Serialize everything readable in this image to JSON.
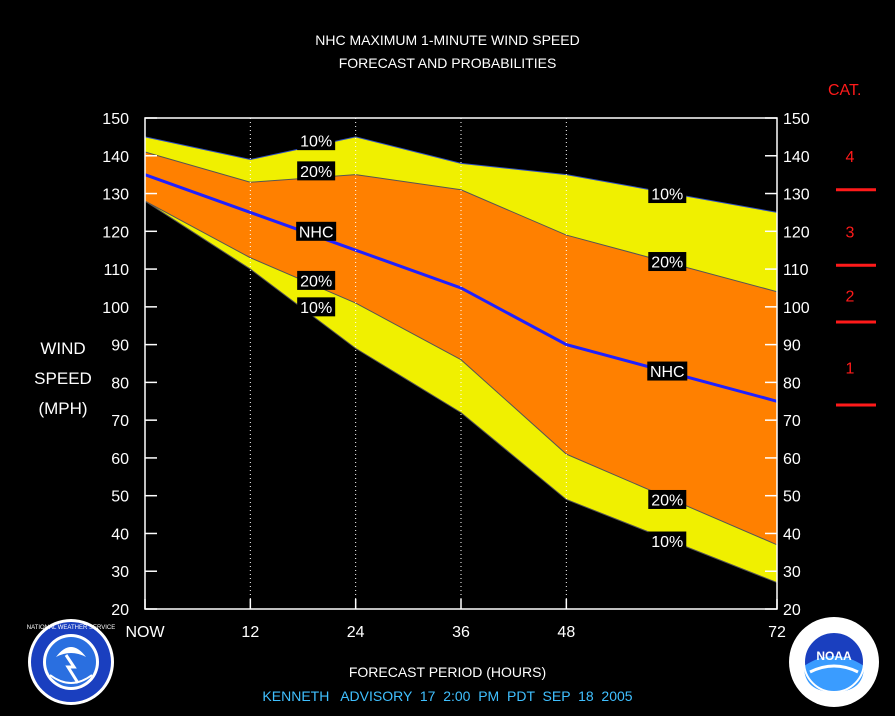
{
  "title": {
    "line1": "NHC MAXIMUM 1-MINUTE WIND SPEED",
    "line2": "FORECAST AND PROBABILITIES"
  },
  "ylabel": [
    "WIND",
    "SPEED",
    "(MPH)"
  ],
  "xlabel": "FORECAST PERIOD (HOURS)",
  "advisory": "KENNETH   ADVISORY  17  2:00  PM  PDT  SEP  18  2005",
  "category_scale": {
    "title": "CAT.",
    "categories": [
      {
        "label": "4",
        "value": 140
      },
      {
        "label": "3",
        "value": 120
      },
      {
        "label": "2",
        "value": 103
      },
      {
        "label": "1",
        "value": 84
      }
    ],
    "thresholds": [
      131,
      111,
      96,
      74
    ]
  },
  "logos": {
    "left_icon": "nws-seal-icon",
    "left_text": "NATIONAL WEATHER SERVICE",
    "right_icon": "noaa-logo-icon",
    "right_text": "NOAA"
  },
  "colors": {
    "band_10": "#f0f000",
    "band_20": "#ff8000",
    "nhc_line": "#2020ff",
    "axis": "#ffffff",
    "category": "#ff1a1a",
    "advisory_text": "#40c0ff"
  },
  "chart_data": {
    "type": "area",
    "title": "NHC MAXIMUM 1-MINUTE WIND SPEED FORECAST AND PROBABILITIES",
    "xlabel": "FORECAST PERIOD (HOURS)",
    "ylabel": "WIND SPEED (MPH)",
    "xlim": [
      0,
      72
    ],
    "ylim": [
      20,
      150
    ],
    "yticks": [
      20,
      30,
      40,
      50,
      60,
      70,
      80,
      90,
      100,
      110,
      120,
      130,
      140,
      150
    ],
    "xticks": [
      {
        "value": 0,
        "label": "NOW"
      },
      {
        "value": 12,
        "label": "12"
      },
      {
        "value": 24,
        "label": "24"
      },
      {
        "value": 36,
        "label": "36"
      },
      {
        "value": 48,
        "label": "48"
      },
      {
        "value": 72,
        "label": "72"
      }
    ],
    "x": [
      0,
      12,
      24,
      36,
      48,
      72
    ],
    "series": [
      {
        "name": "10%",
        "values": [
          145,
          139,
          145,
          138,
          135,
          125
        ]
      },
      {
        "name": "20%",
        "values": [
          141,
          133,
          135,
          131,
          119,
          104
        ]
      },
      {
        "name": "NHC",
        "values": [
          135,
          125,
          115,
          105,
          90,
          75
        ]
      },
      {
        "name": "20%",
        "values": [
          128,
          113,
          101,
          86,
          61,
          37
        ]
      },
      {
        "name": "10%",
        "values": [
          128,
          110,
          89,
          72,
          49,
          27
        ]
      }
    ],
    "annotations": [
      {
        "text": "10%",
        "x": 19.5,
        "y": 144
      },
      {
        "text": "20%",
        "x": 19.5,
        "y": 136
      },
      {
        "text": "NHC",
        "x": 19.5,
        "y": 120
      },
      {
        "text": "20%",
        "x": 19.5,
        "y": 107
      },
      {
        "text": "10%",
        "x": 19.5,
        "y": 100
      },
      {
        "text": "10%",
        "x": 59.5,
        "y": 130
      },
      {
        "text": "20%",
        "x": 59.5,
        "y": 112
      },
      {
        "text": "NHC",
        "x": 59.5,
        "y": 83
      },
      {
        "text": "20%",
        "x": 59.5,
        "y": 49
      },
      {
        "text": "10%",
        "x": 59.5,
        "y": 38
      }
    ]
  }
}
